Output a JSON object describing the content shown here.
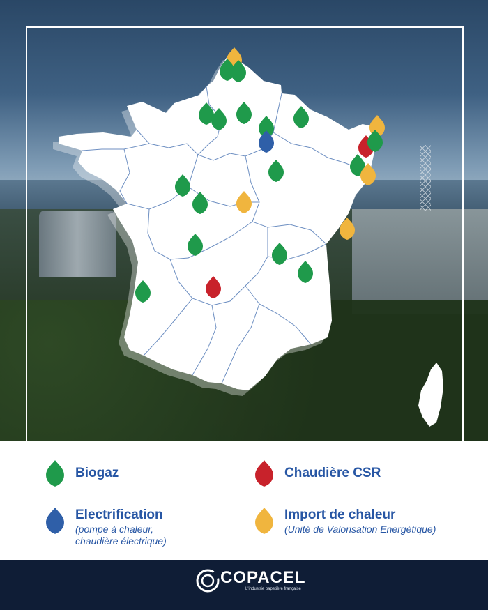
{
  "legend": {
    "biogaz": {
      "label": "Biogaz",
      "color": "#1f9a4b",
      "icon": "biogaz-drop-icon"
    },
    "chaudiere_csr": {
      "label": "Chaudière CSR",
      "color": "#c8222b",
      "icon": "chaudiere-csr-drop-icon"
    },
    "electrification": {
      "label": "Electrification",
      "sub_line1": "(pompe à chaleur,",
      "sub_line2": "chaudière électrique)",
      "color": "#2f5fa8",
      "icon": "electrification-drop-icon"
    },
    "import_chaleur": {
      "label": "Import de chaleur",
      "sub_line1": "(Unité de Valorisation Energétique)",
      "color": "#f0b53e",
      "icon": "import-chaleur-drop-icon"
    }
  },
  "logo": {
    "name": "COPACEL",
    "tagline": "L'industrie papetière française"
  },
  "map": {
    "sites": [
      {
        "type": "import_chaleur"
      },
      {
        "type": "biogaz"
      },
      {
        "type": "biogaz"
      },
      {
        "type": "biogaz"
      },
      {
        "type": "biogaz"
      },
      {
        "type": "biogaz"
      },
      {
        "type": "biogaz"
      },
      {
        "type": "electrification"
      },
      {
        "type": "biogaz"
      },
      {
        "type": "import_chaleur"
      },
      {
        "type": "chaudiere_csr"
      },
      {
        "type": "biogaz"
      },
      {
        "type": "biogaz"
      },
      {
        "type": "import_chaleur"
      },
      {
        "type": "biogaz"
      },
      {
        "type": "biogaz"
      },
      {
        "type": "biogaz"
      },
      {
        "type": "import_chaleur"
      },
      {
        "type": "import_chaleur"
      },
      {
        "type": "biogaz"
      },
      {
        "type": "biogaz"
      },
      {
        "type": "biogaz"
      },
      {
        "type": "biogaz"
      },
      {
        "type": "chaudiere_csr"
      },
      {
        "type": "biogaz"
      }
    ]
  }
}
